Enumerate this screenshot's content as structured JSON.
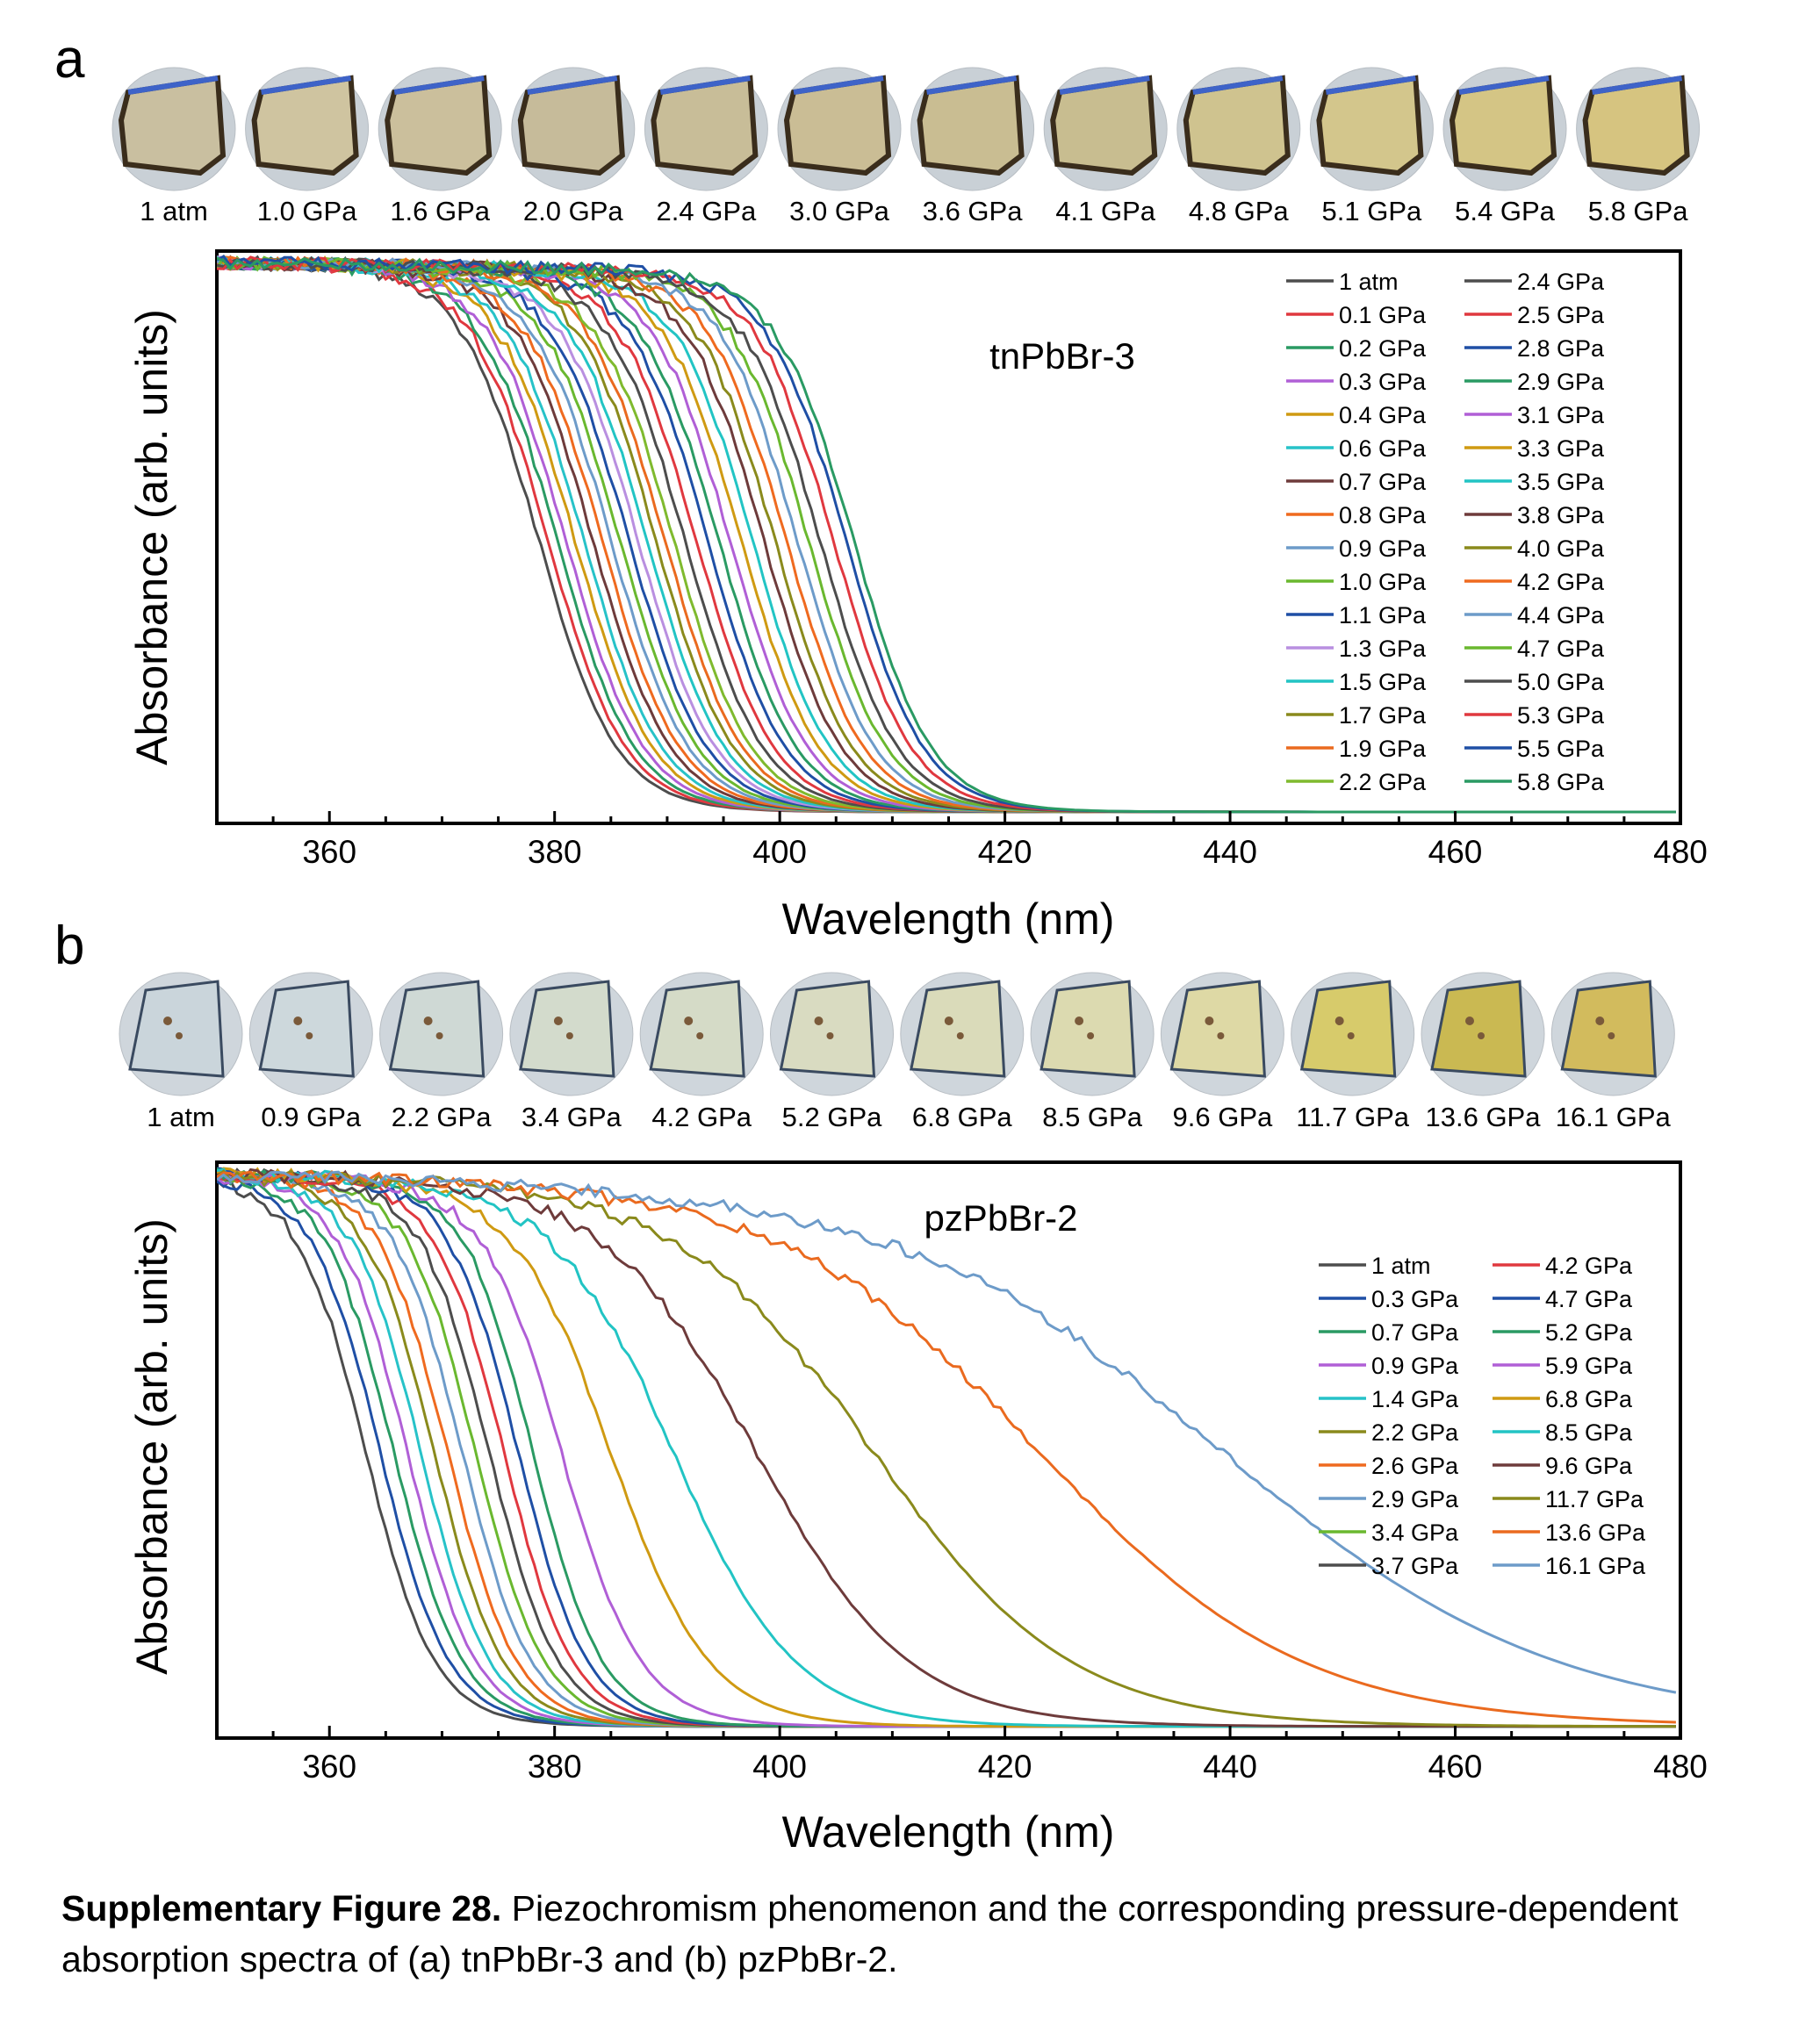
{
  "panel_a": {
    "letter": "a",
    "photo_labels": [
      "1 atm",
      "1.0 GPa",
      "1.6 GPa",
      "2.0 GPa",
      "2.4 GPa",
      "3.0 GPa",
      "3.6 GPa",
      "4.1 GPa",
      "4.8 GPa",
      "5.1 GPa",
      "5.4 GPa",
      "5.8 GPa"
    ]
  },
  "panel_b": {
    "letter": "b",
    "photo_labels": [
      "1 atm",
      "0.9 GPa",
      "2.2 GPa",
      "3.4 GPa",
      "4.2 GPa",
      "5.2 GPa",
      "6.8 GPa",
      "8.5 GPa",
      "9.6 GPa",
      "11.7 GPa",
      "13.6 GPa",
      "16.1 GPa"
    ]
  },
  "caption": {
    "bold": "Supplementary Figure 28.",
    "text": " Piezochromism phenomenon and the corresponding pressure-dependent absorption spectra of (a) tnPbBr-3 and (b) pzPbBr-2."
  },
  "colors": {
    "palette": [
      "#4d4d4d",
      "#e0383f",
      "#2a9a63",
      "#b05fd6",
      "#cf9a12",
      "#27c2c8",
      "#6e3b3b",
      "#ef6a1f",
      "#6d9bc9",
      "#6ab82f",
      "#1f4fa5",
      "#b98fe0",
      "#22c4c4",
      "#8a8a1c",
      "#ea6a1f",
      "#7fba2e"
    ],
    "crystal_a": [
      "#c9bfa0",
      "#cfc4a0",
      "#cbbf9c",
      "#c6bb9a",
      "#c8bd98",
      "#cabd95",
      "#c9bd92",
      "#c8bd90",
      "#cfc38f",
      "#d3c68c",
      "#d4c585",
      "#d6c480"
    ],
    "crystal_b": [
      "#c9d5db",
      "#cdd8dc",
      "#cfd9d4",
      "#d3dcc9",
      "#d6dcc3",
      "#dadcbc",
      "#dcdcb4",
      "#dedba8",
      "#e0d99b",
      "#d8c957",
      "#c9b43a",
      "#d2b647"
    ]
  },
  "chart_data": [
    {
      "type": "line",
      "title": "tnPbBr-3",
      "xlabel": "Wavelength (nm)",
      "ylabel": "Absorbance (arb. units)",
      "xlim": [
        350,
        480
      ],
      "ylim": [
        0,
        1
      ],
      "xticks": [
        360,
        380,
        400,
        420,
        440,
        460,
        480
      ],
      "xtick_labels": [
        "360",
        "380",
        "400",
        "420",
        "440",
        "460",
        "480"
      ],
      "grid": false,
      "legend": "top-right, two columns",
      "series": [
        {
          "name": "1 atm",
          "edge": 378.6,
          "color": "#4d4d4d"
        },
        {
          "name": "0.1 GPa",
          "edge": 379.4,
          "color": "#e0383f"
        },
        {
          "name": "0.2 GPa",
          "edge": 380.2,
          "color": "#2a9a63"
        },
        {
          "name": "0.3 GPa",
          "edge": 381.0,
          "color": "#b05fd6"
        },
        {
          "name": "0.4 GPa",
          "edge": 381.8,
          "color": "#cf9a12"
        },
        {
          "name": "0.6 GPa",
          "edge": 382.6,
          "color": "#27c2c8"
        },
        {
          "name": "0.7 GPa",
          "edge": 383.4,
          "color": "#6e3b3b"
        },
        {
          "name": "0.8 GPa",
          "edge": 384.2,
          "color": "#ef6a1f"
        },
        {
          "name": "0.9 GPa",
          "edge": 385.0,
          "color": "#6d9bc9"
        },
        {
          "name": "1.0 GPa",
          "edge": 385.8,
          "color": "#6ab82f"
        },
        {
          "name": "1.1 GPa",
          "edge": 386.6,
          "color": "#1f4fa5"
        },
        {
          "name": "1.3 GPa",
          "edge": 387.4,
          "color": "#b98fe0"
        },
        {
          "name": "1.5 GPa",
          "edge": 388.2,
          "color": "#22c4c4"
        },
        {
          "name": "1.7 GPa",
          "edge": 389.0,
          "color": "#8a8a1c"
        },
        {
          "name": "1.9 GPa",
          "edge": 389.8,
          "color": "#ea6a1f"
        },
        {
          "name": "2.2 GPa",
          "edge": 390.6,
          "color": "#7fba2e"
        },
        {
          "name": "2.4 GPa",
          "edge": 391.6,
          "color": "#4d4d4d"
        },
        {
          "name": "2.5 GPa",
          "edge": 392.6,
          "color": "#e0383f"
        },
        {
          "name": "2.8 GPa",
          "edge": 393.6,
          "color": "#1f4fa5"
        },
        {
          "name": "2.9 GPa",
          "edge": 394.6,
          "color": "#2a9a63"
        },
        {
          "name": "3.1 GPa",
          "edge": 395.6,
          "color": "#b05fd6"
        },
        {
          "name": "3.3 GPa",
          "edge": 396.6,
          "color": "#cf9a12"
        },
        {
          "name": "3.5 GPa",
          "edge": 397.6,
          "color": "#22c4c4"
        },
        {
          "name": "3.8 GPa",
          "edge": 398.6,
          "color": "#6e3b3b"
        },
        {
          "name": "4.0 GPa",
          "edge": 399.6,
          "color": "#8a8a1c"
        },
        {
          "name": "4.2 GPa",
          "edge": 400.6,
          "color": "#ef6a1f"
        },
        {
          "name": "4.4 GPa",
          "edge": 401.6,
          "color": "#6d9bc9"
        },
        {
          "name": "4.7 GPa",
          "edge": 402.6,
          "color": "#6ab82f"
        },
        {
          "name": "5.0 GPa",
          "edge": 403.6,
          "color": "#4d4d4d"
        },
        {
          "name": "5.3 GPa",
          "edge": 404.8,
          "color": "#e0383f"
        },
        {
          "name": "5.5 GPa",
          "edge": 405.9,
          "color": "#1f4fa5"
        },
        {
          "name": "5.8 GPa",
          "edge": 406.6,
          "color": "#2a9a63"
        }
      ]
    },
    {
      "type": "line",
      "title": "pzPbBr-2",
      "xlabel": "Wavelength (nm)",
      "ylabel": "Absorbance (arb. units)",
      "xlim": [
        350,
        480
      ],
      "ylim": [
        0,
        1
      ],
      "xticks": [
        360,
        380,
        400,
        420,
        440,
        460,
        480
      ],
      "xtick_labels": [
        "360",
        "380",
        "400",
        "420",
        "440",
        "460",
        "480"
      ],
      "grid": false,
      "legend": "right, two columns",
      "series": [
        {
          "name": "1 atm",
          "edge": 363.2,
          "color": "#4d4d4d"
        },
        {
          "name": "0.3 GPa",
          "edge": 364.5,
          "color": "#1f4fa5"
        },
        {
          "name": "0.7 GPa",
          "edge": 365.7,
          "color": "#2a9a63"
        },
        {
          "name": "0.9 GPa",
          "edge": 366.9,
          "color": "#b05fd6"
        },
        {
          "name": "1.4 GPa",
          "edge": 368.1,
          "color": "#27c2c8"
        },
        {
          "name": "2.2 GPa",
          "edge": 369.3,
          "color": "#8a8a1c"
        },
        {
          "name": "2.6 GPa",
          "edge": 370.5,
          "color": "#ef6a1f"
        },
        {
          "name": "2.9 GPa",
          "edge": 371.8,
          "color": "#6d9bc9"
        },
        {
          "name": "3.4 GPa",
          "edge": 373.0,
          "color": "#6ab82f"
        },
        {
          "name": "3.7 GPa",
          "edge": 374.2,
          "color": "#4d4d4d"
        },
        {
          "name": "4.2 GPa",
          "edge": 375.5,
          "color": "#e0383f"
        },
        {
          "name": "4.7 GPa",
          "edge": 376.8,
          "color": "#1f4fa5"
        },
        {
          "name": "5.2 GPa",
          "edge": 378.1,
          "color": "#2a9a63"
        },
        {
          "name": "5.9 GPa",
          "edge": 380.6,
          "color": "#b05fd6"
        },
        {
          "name": "6.8 GPa",
          "edge": 385.0,
          "color": "#cf9a12"
        },
        {
          "name": "8.5 GPa",
          "edge": 390.6,
          "color": "#22c4c4"
        },
        {
          "name": "9.6 GPa",
          "edge": 398.0,
          "color": "#6e3b3b"
        },
        {
          "name": "11.7 GPa",
          "edge": 408.5,
          "color": "#8a8a1c"
        },
        {
          "name": "13.6 GPa",
          "edge": 423.5,
          "color": "#ea6a1f"
        },
        {
          "name": "16.1 GPa",
          "edge": 440.0,
          "color": "#6d9bc9"
        }
      ]
    }
  ]
}
